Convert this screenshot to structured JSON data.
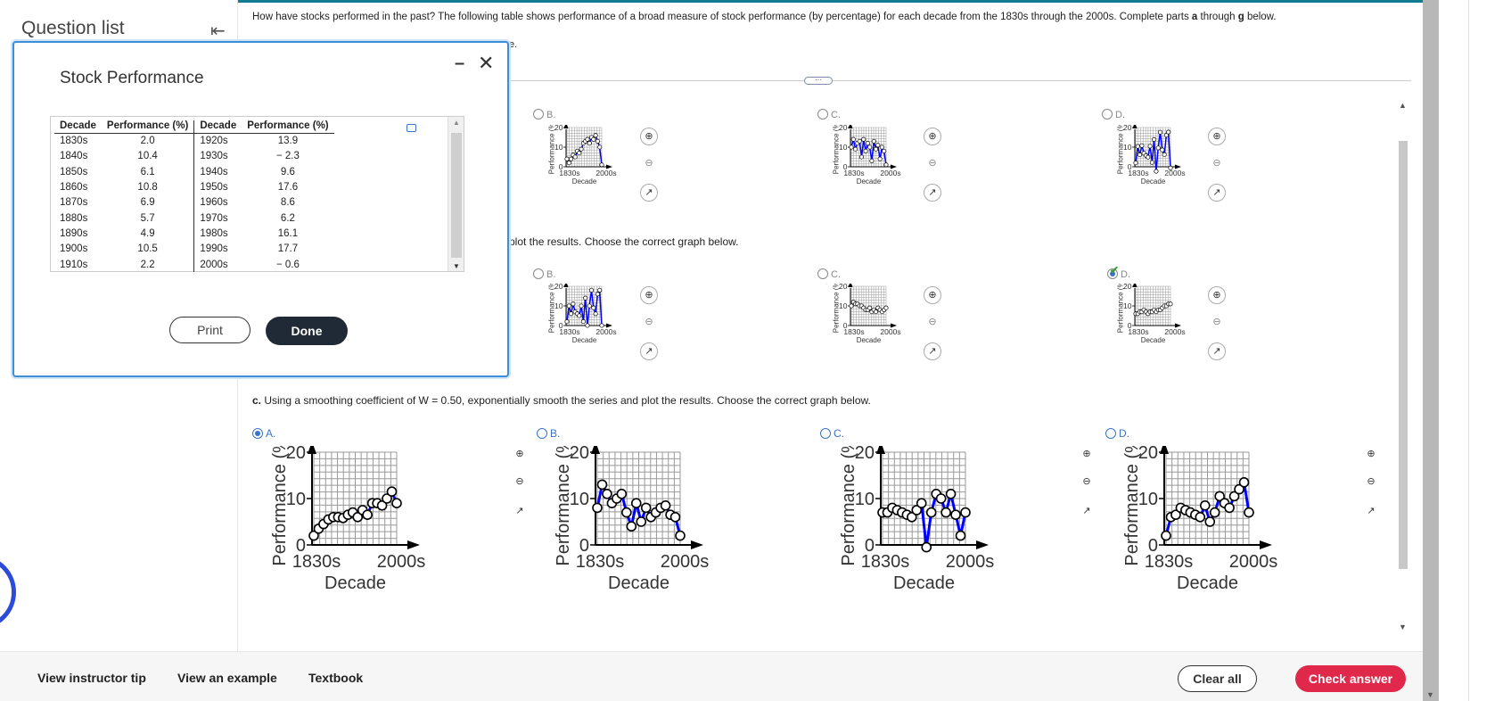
{
  "sidebar": {
    "title": "Question list"
  },
  "question": {
    "prompt_lead": "How have stocks performed in the past? The following table shows performance of a broad measure of stock performance (by percentage) for each decade from the 1830s through the 2000s. Complete parts ",
    "prompt_a": "a",
    "prompt_mid": " through ",
    "prompt_g": "g",
    "prompt_tail": " below.",
    "fragment_e": "e.",
    "part_b_fragment": "plot the results. Choose the correct graph below.",
    "part_c_label": "c.",
    "part_c_text": " Using a smoothing coefficient of W = 0.50, exponentially smooth the series and plot the results. Choose the correct graph below."
  },
  "options": {
    "row1": [
      "B.",
      "C.",
      "D."
    ],
    "row2": [
      "B.",
      "C.",
      "D."
    ],
    "row3": [
      "A.",
      "B.",
      "C.",
      "D."
    ]
  },
  "axes": {
    "ylabel": "Performance (%)",
    "xlabel": "Decade",
    "x_start": "1830s",
    "x_end": "2000s",
    "y_ticks": [
      "0",
      "10",
      "20"
    ]
  },
  "chart_data": [
    {
      "type": "line",
      "name": "row1-B",
      "x": [
        "1830s",
        "1840s",
        "1850s",
        "1860s",
        "1870s",
        "1880s",
        "1890s",
        "1900s",
        "1910s",
        "1920s",
        "1930s",
        "1940s",
        "1950s",
        "1960s",
        "1970s",
        "1980s",
        "1990s",
        "2000s"
      ],
      "values": [
        4,
        2,
        4,
        6,
        5,
        8,
        7,
        9,
        12,
        13,
        14,
        12,
        15,
        14,
        16,
        13,
        10,
        1
      ],
      "ylim": [
        0,
        20
      ]
    },
    {
      "type": "line",
      "name": "row1-C",
      "x": [
        "1830s",
        "1840s",
        "1850s",
        "1860s",
        "1870s",
        "1880s",
        "1890s",
        "1900s",
        "1910s",
        "1920s",
        "1930s",
        "1940s",
        "1950s",
        "1960s",
        "1970s",
        "1980s",
        "1990s",
        "2000s"
      ],
      "values": [
        10,
        14,
        9,
        12,
        13,
        5,
        14,
        8,
        12,
        10,
        3,
        13,
        9,
        11,
        4,
        10,
        8,
        1
      ],
      "ylim": [
        0,
        20
      ]
    },
    {
      "type": "line",
      "name": "row1-D",
      "x": [
        "1830s",
        "1840s",
        "1850s",
        "1860s",
        "1870s",
        "1880s",
        "1890s",
        "1900s",
        "1910s",
        "1920s",
        "1930s",
        "1940s",
        "1950s",
        "1960s",
        "1970s",
        "1980s",
        "1990s",
        "2000s"
      ],
      "values": [
        2,
        10.4,
        6.1,
        10.8,
        6.9,
        5.7,
        4.9,
        10.5,
        2.2,
        13.9,
        -2.3,
        9.6,
        17.6,
        8.6,
        6.2,
        16.1,
        17.7,
        -0.6
      ],
      "ylim": [
        0,
        20
      ]
    },
    {
      "type": "line",
      "name": "row2-B",
      "x": [
        "1830s",
        "1840s",
        "1850s",
        "1860s",
        "1870s",
        "1880s",
        "1890s",
        "1900s",
        "1910s",
        "1920s",
        "1930s",
        "1940s",
        "1950s",
        "1960s",
        "1970s",
        "1980s",
        "1990s",
        "2000s"
      ],
      "values": [
        2,
        10,
        6,
        11,
        7,
        6,
        5,
        10,
        2,
        14,
        0,
        10,
        18,
        9,
        6,
        16,
        18,
        0
      ],
      "ylim": [
        0,
        20
      ]
    },
    {
      "type": "line",
      "name": "row2-C",
      "x": [
        "1830s",
        "1840s",
        "1850s",
        "1860s",
        "1870s",
        "1880s",
        "1890s",
        "1900s",
        "1910s",
        "1920s",
        "1930s",
        "1940s",
        "1950s",
        "1960s",
        "1970s",
        "1980s",
        "1990s",
        "2000s"
      ],
      "values": [
        10,
        12,
        11,
        11,
        10,
        10,
        9,
        8,
        8,
        9,
        7,
        8,
        7,
        9,
        8,
        7,
        8,
        9
      ],
      "ylim": [
        0,
        20
      ]
    },
    {
      "type": "line",
      "name": "row2-D",
      "x": [
        "1830s",
        "1840s",
        "1850s",
        "1860s",
        "1870s",
        "1880s",
        "1890s",
        "1900s",
        "1910s",
        "1920s",
        "1930s",
        "1940s",
        "1950s",
        "1960s",
        "1970s",
        "1980s",
        "1990s",
        "2000s"
      ],
      "values": [
        6,
        6,
        7,
        7,
        8,
        7,
        6,
        7,
        7,
        8,
        7,
        8,
        8,
        9,
        10,
        10,
        11,
        11
      ],
      "ylim": [
        0,
        20
      ]
    },
    {
      "type": "line",
      "name": "row3-A",
      "x": [
        "1830s",
        "1840s",
        "1850s",
        "1860s",
        "1870s",
        "1880s",
        "1890s",
        "1900s",
        "1910s",
        "1920s",
        "1930s",
        "1940s",
        "1950s",
        "1960s",
        "1970s",
        "1980s",
        "1990s",
        "2000s"
      ],
      "values": [
        2,
        3.5,
        4.5,
        5.5,
        6,
        6,
        5.8,
        6.5,
        7,
        6,
        7.5,
        6.5,
        9,
        9,
        8.5,
        10,
        11.5,
        9
      ],
      "ylim": [
        0,
        20
      ]
    },
    {
      "type": "line",
      "name": "row3-B",
      "x": [
        "1830s",
        "1840s",
        "1850s",
        "1860s",
        "1870s",
        "1880s",
        "1890s",
        "1900s",
        "1910s",
        "1920s",
        "1930s",
        "1940s",
        "1950s",
        "1960s",
        "1970s",
        "1980s",
        "1990s",
        "2000s"
      ],
      "values": [
        8,
        13,
        11,
        9,
        10,
        11,
        7,
        4,
        9,
        5,
        8,
        6,
        7,
        8,
        8.5,
        6.5,
        6,
        2
      ],
      "ylim": [
        0,
        20
      ]
    },
    {
      "type": "line",
      "name": "row3-C",
      "x": [
        "1830s",
        "1840s",
        "1850s",
        "1860s",
        "1870s",
        "1880s",
        "1890s",
        "1900s",
        "1910s",
        "1920s",
        "1930s",
        "1940s",
        "1950s",
        "1960s",
        "1970s",
        "1980s",
        "1990s",
        "2000s"
      ],
      "values": [
        7,
        7,
        8,
        7.5,
        7,
        6.5,
        6,
        7.5,
        9,
        -0.5,
        7,
        11,
        10,
        7,
        11,
        6.5,
        2,
        7
      ],
      "ylim": [
        0,
        20
      ]
    },
    {
      "type": "line",
      "name": "row3-D",
      "x": [
        "1830s",
        "1840s",
        "1850s",
        "1860s",
        "1870s",
        "1880s",
        "1890s",
        "1900s",
        "1910s",
        "1920s",
        "1930s",
        "1940s",
        "1950s",
        "1960s",
        "1970s",
        "1980s",
        "1990s",
        "2000s"
      ],
      "values": [
        2,
        6,
        6.5,
        8,
        7.5,
        7,
        6.5,
        6,
        8.5,
        5,
        7,
        10.5,
        9,
        8,
        10.5,
        12,
        13.5,
        7
      ],
      "ylim": [
        0,
        20
      ]
    }
  ],
  "modal": {
    "title": "Stock Performance",
    "headers": [
      "Decade",
      "Performance (%)",
      "Decade",
      "Performance (%)"
    ],
    "rows": [
      [
        "1830s",
        "2.0",
        "1920s",
        "13.9"
      ],
      [
        "1840s",
        "10.4",
        "1930s",
        "− 2.3"
      ],
      [
        "1850s",
        "6.1",
        "1940s",
        "9.6"
      ],
      [
        "1860s",
        "10.8",
        "1950s",
        "17.6"
      ],
      [
        "1870s",
        "6.9",
        "1960s",
        "8.6"
      ],
      [
        "1880s",
        "5.7",
        "1970s",
        "6.2"
      ],
      [
        "1890s",
        "4.9",
        "1980s",
        "16.1"
      ],
      [
        "1900s",
        "10.5",
        "1990s",
        "17.7"
      ],
      [
        "1910s",
        "2.2",
        "2000s",
        "− 0.6"
      ]
    ],
    "print_label": "Print",
    "done_label": "Done"
  },
  "footer": {
    "instructor_tip": "View instructor tip",
    "example": "View an example",
    "textbook": "Textbook",
    "clear_all": "Clear all",
    "check_answer": "Check answer"
  },
  "colors": {
    "accent": "#3b73c9",
    "line": "#0000ff",
    "check_button": "#e0294a",
    "done_button": "#1f2a36",
    "modal_border": "#3b8fd8"
  }
}
